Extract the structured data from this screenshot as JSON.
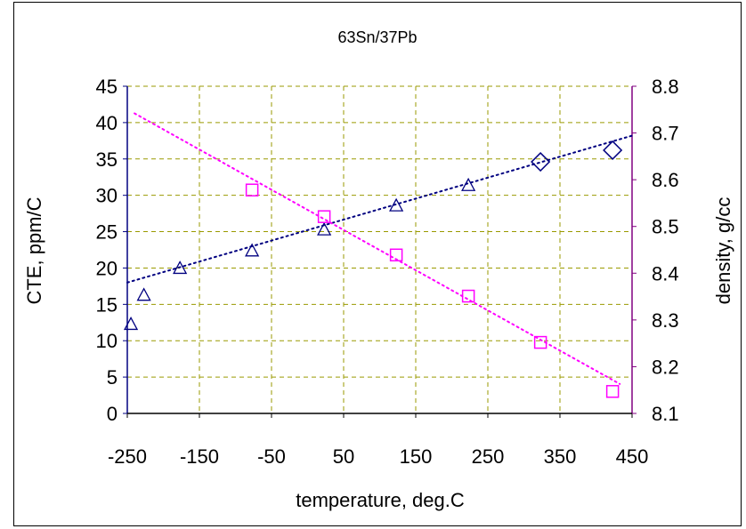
{
  "chart_data": {
    "type": "scatter",
    "title": "63Sn/37Pb",
    "xlabel": "temperature, deg.C",
    "ylabel_left": "CTE, ppm/C",
    "ylabel_right": "density, g/cc",
    "xlim": [
      -250,
      450
    ],
    "x_ticks": [
      "-250",
      "-150",
      "-50",
      "50",
      "150",
      "250",
      "350",
      "450"
    ],
    "ylim_left": [
      0,
      45
    ],
    "y_ticks_left": [
      "0",
      "5",
      "10",
      "15",
      "20",
      "25",
      "30",
      "35",
      "40",
      "45"
    ],
    "ylim_right": [
      8.1,
      8.8
    ],
    "y_ticks_right": [
      "8.1",
      "8.2",
      "8.3",
      "8.4",
      "8.5",
      "8.6",
      "8.7",
      "8.8"
    ],
    "grid": true,
    "legend": "none",
    "series": [
      {
        "axis": "left",
        "marker": "triangle",
        "color": "#000080",
        "points": [
          [
            -245,
            12.3
          ],
          [
            -227,
            16.3
          ],
          [
            -177,
            20.0
          ],
          [
            -77,
            22.4
          ],
          [
            23,
            25.3
          ],
          [
            123,
            28.6
          ],
          [
            223,
            31.4
          ]
        ]
      },
      {
        "axis": "left",
        "marker": "diamond",
        "color": "#000080",
        "points": [
          [
            323,
            34.6
          ],
          [
            423,
            36.2
          ]
        ]
      },
      {
        "axis": "right",
        "marker": "square",
        "color": "#ff00ff",
        "points": [
          [
            -77,
            8.578
          ],
          [
            23,
            8.521
          ],
          [
            123,
            8.439
          ],
          [
            223,
            8.351
          ],
          [
            323,
            8.252
          ],
          [
            423,
            8.147
          ]
        ]
      }
    ],
    "trendlines": [
      {
        "axis": "left",
        "color": "#000080",
        "from": [
          -250,
          18.0
        ],
        "to": [
          450,
          38.2
        ]
      },
      {
        "axis": "right",
        "color": "#ff00ff",
        "from": [
          -240,
          8.742
        ],
        "to": [
          433,
          8.163
        ]
      }
    ]
  }
}
